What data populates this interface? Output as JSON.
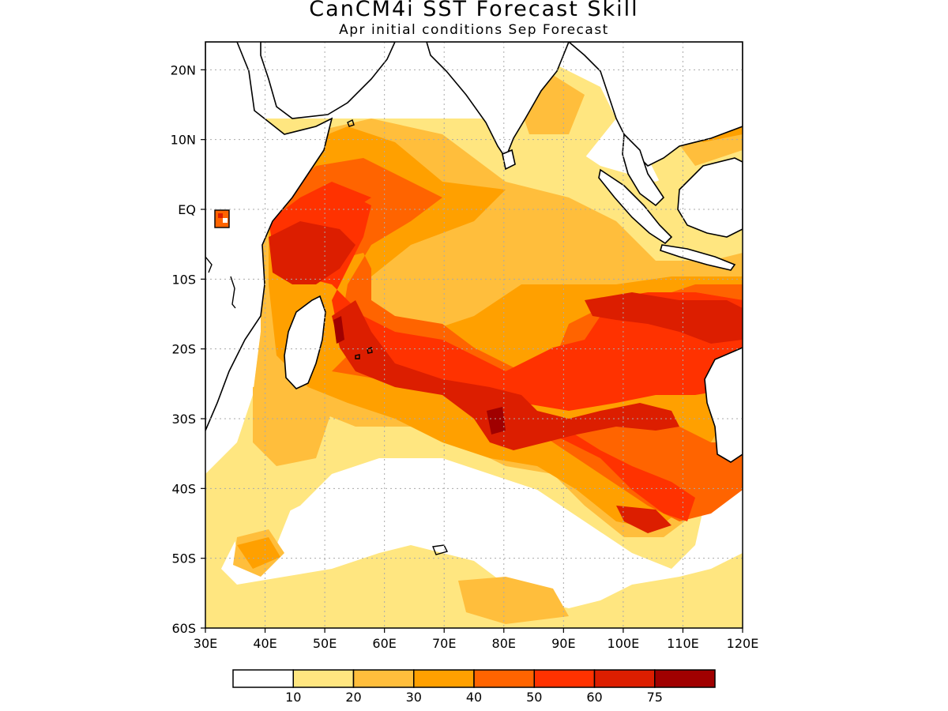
{
  "title": "CanCM4i SST Forecast Skill",
  "subtitle": "Apr initial conditions  Sep Forecast",
  "axes": {
    "lon_ticks": [
      {
        "value": 30,
        "label": "30E"
      },
      {
        "value": 40,
        "label": "40E"
      },
      {
        "value": 50,
        "label": "50E"
      },
      {
        "value": 60,
        "label": "60E"
      },
      {
        "value": 70,
        "label": "70E"
      },
      {
        "value": 80,
        "label": "80E"
      },
      {
        "value": 90,
        "label": "90E"
      },
      {
        "value": 100,
        "label": "100E"
      },
      {
        "value": 110,
        "label": "110E"
      },
      {
        "value": 120,
        "label": "120E"
      }
    ],
    "lat_ticks": [
      {
        "value": 20,
        "label": "20N"
      },
      {
        "value": 10,
        "label": "10N"
      },
      {
        "value": 0,
        "label": "EQ"
      },
      {
        "value": -10,
        "label": "10S"
      },
      {
        "value": -20,
        "label": "20S"
      },
      {
        "value": -30,
        "label": "30S"
      },
      {
        "value": -40,
        "label": "40S"
      },
      {
        "value": -50,
        "label": "50S"
      },
      {
        "value": -60,
        "label": "60S"
      }
    ],
    "lon_range": [
      30,
      120
    ],
    "lat_range": [
      -60,
      24
    ]
  },
  "colorbar": {
    "colors": [
      "#ffffff",
      "#ffe680",
      "#ffbe3c",
      "#ffa000",
      "#ff6400",
      "#ff3200",
      "#dc1e00",
      "#a00000"
    ],
    "labels": [
      "10",
      "20",
      "30",
      "40",
      "50",
      "60",
      "75"
    ]
  },
  "skill_colors": {
    "white": "#ffffff",
    "c10": "#ffe680",
    "c20": "#ffbe3c",
    "c30": "#ffa000",
    "c40": "#ff6400",
    "c50": "#ff3200",
    "c60": "#dc1e00",
    "c75": "#a00000"
  }
}
